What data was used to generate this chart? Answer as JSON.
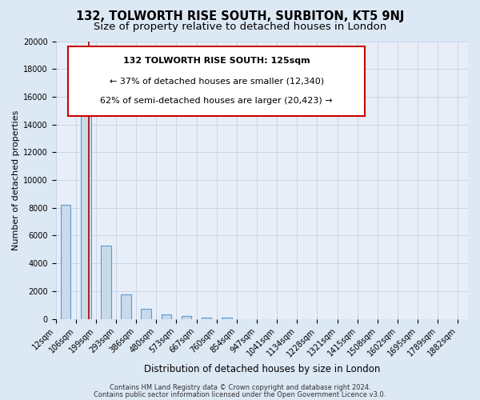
{
  "title": "132, TOLWORTH RISE SOUTH, SURBITON, KT5 9NJ",
  "subtitle": "Size of property relative to detached houses in London",
  "xlabel": "Distribution of detached houses by size in London",
  "ylabel": "Number of detached properties",
  "bin_labels": [
    "12sqm",
    "106sqm",
    "199sqm",
    "293sqm",
    "386sqm",
    "480sqm",
    "573sqm",
    "667sqm",
    "760sqm",
    "854sqm",
    "947sqm",
    "1041sqm",
    "1134sqm",
    "1228sqm",
    "1321sqm",
    "1415sqm",
    "1508sqm",
    "1602sqm",
    "1695sqm",
    "1789sqm",
    "1882sqm"
  ],
  "bar_heights": [
    8200,
    16600,
    5300,
    1750,
    750,
    300,
    200,
    100,
    100,
    0,
    0,
    0,
    0,
    0,
    0,
    0,
    0,
    0,
    0,
    0
  ],
  "bar_color": "#c9daea",
  "bar_edge_color": "#5b9bd5",
  "background_color": "#dde8f5",
  "plot_bg_color": "#e8eef7",
  "grid_color": "#c8d4e8",
  "property_line_x": 1.13,
  "property_line_color": "#aa0000",
  "annotation_title": "132 TOLWORTH RISE SOUTH: 125sqm",
  "annotation_line1": "← 37% of detached houses are smaller (12,340)",
  "annotation_line2": "62% of semi-detached houses are larger (20,423) →",
  "annotation_box_color": "#ffffff",
  "annotation_box_edge": "#cc0000",
  "ylim": [
    0,
    20000
  ],
  "yticks": [
    0,
    2000,
    4000,
    6000,
    8000,
    10000,
    12000,
    14000,
    16000,
    18000,
    20000
  ],
  "footer1": "Contains HM Land Registry data © Crown copyright and database right 2024.",
  "footer2": "Contains public sector information licensed under the Open Government Licence v3.0.",
  "title_fontsize": 10.5,
  "subtitle_fontsize": 9.5,
  "xlabel_fontsize": 8.5,
  "ylabel_fontsize": 8,
  "tick_fontsize": 7,
  "footer_fontsize": 6,
  "annotation_title_fontsize": 8,
  "annotation_text_fontsize": 8,
  "num_bins": 20,
  "bar_width": 0.5
}
